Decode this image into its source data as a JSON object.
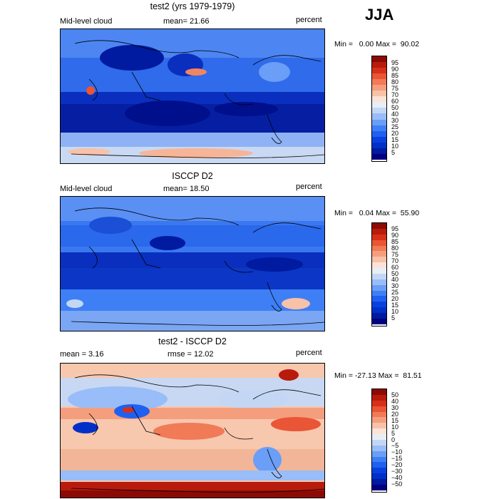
{
  "season": "JJA",
  "panels": [
    {
      "title": "test2 (yrs 1979-1979)",
      "left_label": "Mid-level cloud",
      "mid_label": "mean=  21.66",
      "units": "percent",
      "minmax": "Min =   0.00 Max =  90.02",
      "palette": [
        "#000080",
        "#001aa0",
        "#0030c8",
        "#0a40e0",
        "#2060f0",
        "#3f7ff5",
        "#6a9ef7",
        "#98bdf8",
        "#c3d7f5",
        "#e8eef5",
        "#fbe3d6",
        "#f7c2a8",
        "#f49e7e",
        "#f17a57",
        "#e95535",
        "#d63018",
        "#b81b0c",
        "#8c0a04"
      ],
      "ticks": [
        "95",
        "90",
        "85",
        "80",
        "75",
        "70",
        "60",
        "50",
        "40",
        "30",
        "25",
        "20",
        "15",
        "10",
        "5"
      ]
    },
    {
      "title": "ISCCP D2",
      "left_label": "Mid-level cloud",
      "mid_label": "mean=  18.50",
      "units": "percent",
      "minmax": "Min =   0.04 Max =  55.90",
      "palette": [
        "#000080",
        "#001aa0",
        "#0030c8",
        "#0a40e0",
        "#2060f0",
        "#3f7ff5",
        "#6a9ef7",
        "#98bdf8",
        "#c3d7f5",
        "#e8eef5",
        "#fbe3d6",
        "#f7c2a8",
        "#f49e7e",
        "#f17a57",
        "#e95535",
        "#d63018",
        "#b81b0c",
        "#8c0a04"
      ],
      "ticks": [
        "95",
        "90",
        "85",
        "80",
        "75",
        "70",
        "60",
        "50",
        "40",
        "30",
        "25",
        "20",
        "15",
        "10",
        "5"
      ]
    },
    {
      "title": "test2 - ISCCP D2",
      "left_label": "mean =   3.16",
      "mid_label": "rmse =  12.02",
      "units": "percent",
      "minmax": "Min = -27.13 Max =  81.51",
      "palette": [
        "#000080",
        "#001aa0",
        "#0030c8",
        "#0a40e0",
        "#2060f0",
        "#3f7ff5",
        "#6a9ef7",
        "#98bdf8",
        "#c3d7f5",
        "#e8eef5",
        "#fbe3d6",
        "#f7c2a8",
        "#f49e7e",
        "#f17a57",
        "#e95535",
        "#d63018",
        "#b81b0c",
        "#8c0a04"
      ],
      "ticks": [
        "50",
        "40",
        "30",
        "20",
        "15",
        "10",
        "5",
        "0",
        "−5",
        "−10",
        "−15",
        "−20",
        "−30",
        "−40",
        "−50"
      ]
    }
  ],
  "chart_data": [
    {
      "type": "heatmap",
      "title": "test2 (yrs 1979-1979)",
      "variable": "Mid-level cloud",
      "units": "percent",
      "mean": 21.66,
      "min": 0.0,
      "max": 90.02,
      "levels": [
        5,
        10,
        15,
        20,
        25,
        30,
        40,
        50,
        60,
        70,
        75,
        80,
        85,
        90,
        95
      ]
    },
    {
      "type": "heatmap",
      "title": "ISCCP D2",
      "variable": "Mid-level cloud",
      "units": "percent",
      "mean": 18.5,
      "min": 0.04,
      "max": 55.9,
      "levels": [
        5,
        10,
        15,
        20,
        25,
        30,
        40,
        50,
        60,
        70,
        75,
        80,
        85,
        90,
        95
      ]
    },
    {
      "type": "heatmap",
      "title": "test2 - ISCCP D2",
      "units": "percent",
      "mean": 3.16,
      "rmse": 12.02,
      "min": -27.13,
      "max": 81.51,
      "levels": [
        -50,
        -40,
        -30,
        -20,
        -15,
        -10,
        -5,
        0,
        5,
        10,
        15,
        20,
        30,
        40,
        50
      ]
    }
  ]
}
